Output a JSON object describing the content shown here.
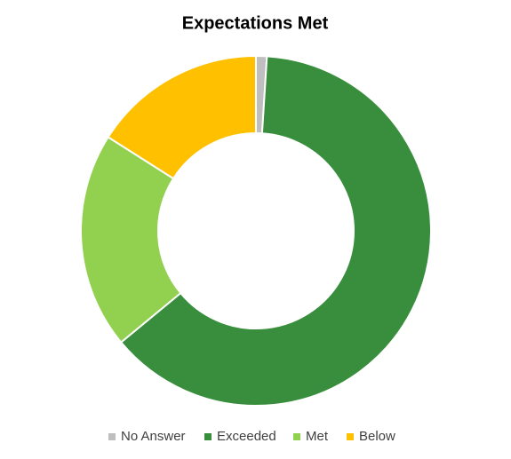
{
  "chart_data": {
    "type": "donut",
    "title": "Expectations Met",
    "categories": [
      "No Answer",
      "Exceeded",
      "Met",
      "Below"
    ],
    "values": [
      1,
      63,
      20,
      16
    ],
    "colors": [
      "#bfbfbf",
      "#388e3c",
      "#92d050",
      "#ffc000"
    ],
    "legend": "bottom"
  }
}
